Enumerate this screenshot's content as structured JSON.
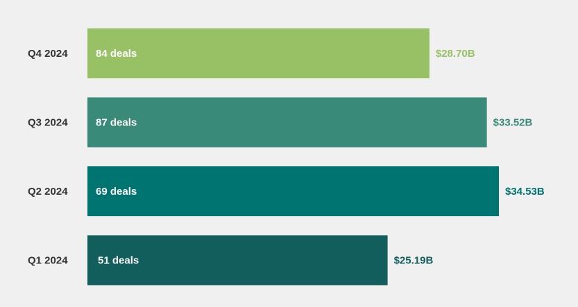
{
  "chart_data": {
    "type": "bar",
    "orientation": "horizontal",
    "categories": [
      "Q4 2024",
      "Q3 2024",
      "Q2 2024",
      "Q1 2024"
    ],
    "values": [
      28.7,
      33.52,
      34.53,
      25.19
    ],
    "value_labels": [
      "$28.70B",
      "$33.52B",
      "$34.53B",
      "$25.19B"
    ],
    "bar_labels": [
      "84 deals",
      "87 deals",
      "69 deals",
      "51 deals"
    ],
    "deal_counts": [
      84,
      87,
      69,
      51
    ],
    "colors": [
      "#98c165",
      "#3a8a79",
      "#007471",
      "#115e5c"
    ],
    "value_label_colors": [
      "#98c165",
      "#3a8a79",
      "#007471",
      "#115e5c"
    ],
    "grid": false,
    "legend": "none",
    "xlim": [
      0,
      34.53
    ]
  }
}
